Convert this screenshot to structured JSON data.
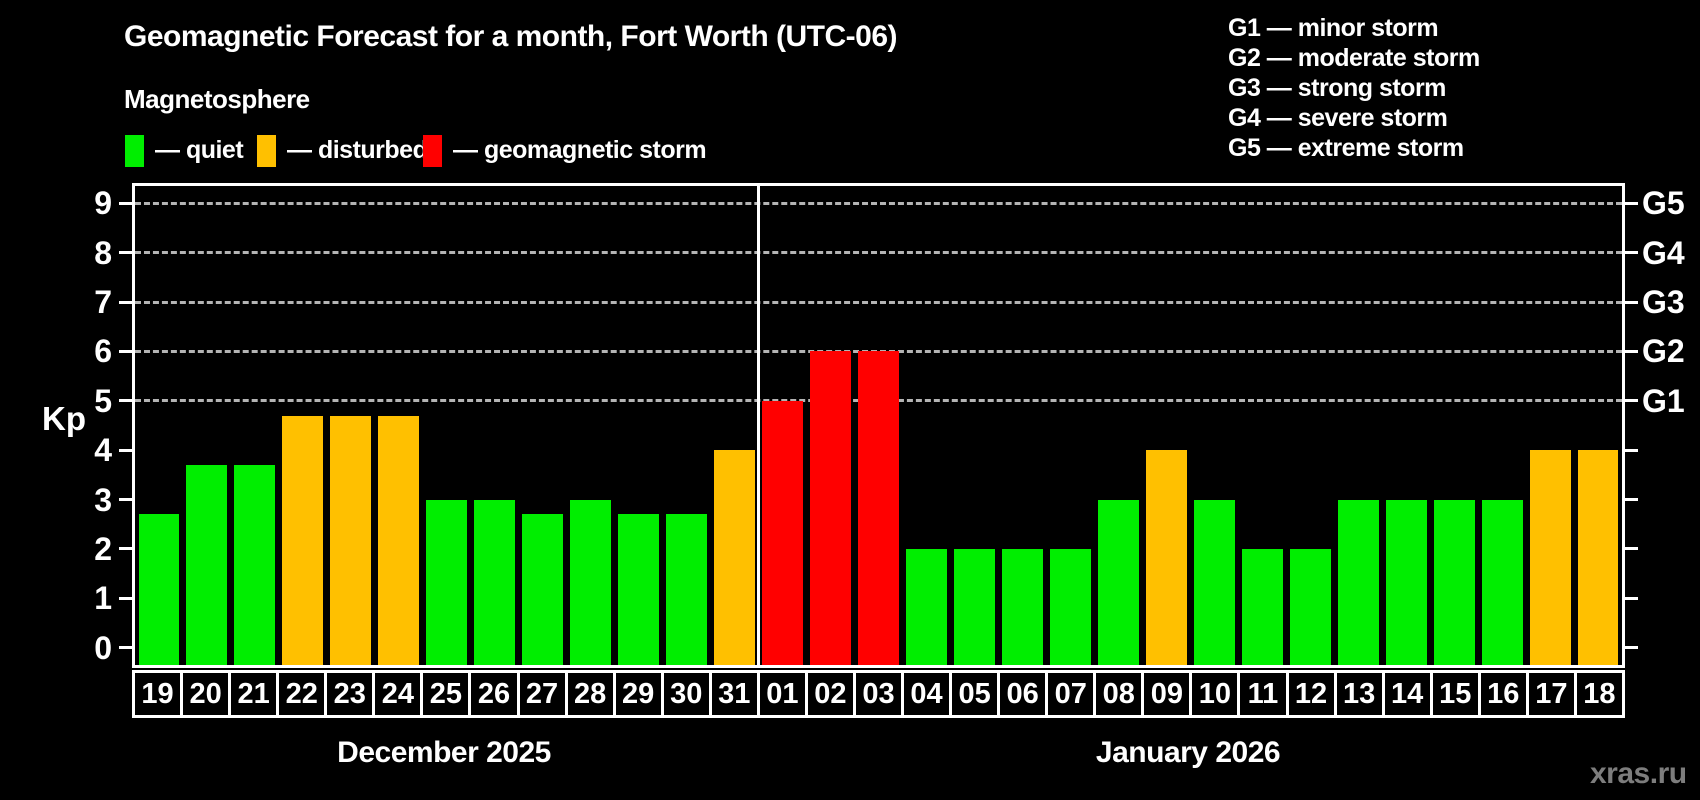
{
  "header": {
    "title": "Geomagnetic Forecast for a month, Fort Worth (UTC-06)",
    "subtitle": "Magnetosphere",
    "legend": [
      {
        "key": "quiet",
        "label": "— quiet",
        "color": "#00EE00"
      },
      {
        "key": "disturbed",
        "label": "— disturbed",
        "color": "#FFC000"
      },
      {
        "key": "storm",
        "label": "— geomagnetic storm",
        "color": "#FF0000"
      }
    ],
    "g_separator": "—",
    "g_legend": [
      {
        "code": "G1",
        "desc": "minor storm"
      },
      {
        "code": "G2",
        "desc": "moderate storm"
      },
      {
        "code": "G3",
        "desc": "strong storm"
      },
      {
        "code": "G4",
        "desc": "severe storm"
      },
      {
        "code": "G5",
        "desc": "extreme storm"
      }
    ]
  },
  "watermark": "xras.ru",
  "chart_data": {
    "type": "bar",
    "title": "Geomagnetic Forecast for a month, Fort Worth (UTC-06)",
    "subtitle": "Magnetosphere",
    "ylabel": "Kp",
    "ylim": [
      0,
      9.4
    ],
    "y_ticks": [
      0,
      1,
      2,
      3,
      4,
      5,
      6,
      7,
      8,
      9
    ],
    "gridlines_at": [
      5,
      6,
      7,
      8,
      9
    ],
    "grid_style": "dashed",
    "right_axis": [
      {
        "label": "G1",
        "kp": 5
      },
      {
        "label": "G2",
        "kp": 6
      },
      {
        "label": "G3",
        "kp": 7
      },
      {
        "label": "G4",
        "kp": 8
      },
      {
        "label": "G5",
        "kp": 9
      }
    ],
    "colors": {
      "quiet": "#00EE00",
      "disturbed": "#FFC000",
      "storm": "#FF0000"
    },
    "groups": [
      {
        "label": "December 2025",
        "days": 13
      },
      {
        "label": "January 2026",
        "days": 18
      }
    ],
    "separator_after_index": 12,
    "bars": [
      {
        "day": "19",
        "kp": 2.7,
        "status": "quiet"
      },
      {
        "day": "20",
        "kp": 3.7,
        "status": "quiet"
      },
      {
        "day": "21",
        "kp": 3.7,
        "status": "quiet"
      },
      {
        "day": "22",
        "kp": 4.7,
        "status": "disturbed"
      },
      {
        "day": "23",
        "kp": 4.7,
        "status": "disturbed"
      },
      {
        "day": "24",
        "kp": 4.7,
        "status": "disturbed"
      },
      {
        "day": "25",
        "kp": 3.0,
        "status": "quiet"
      },
      {
        "day": "26",
        "kp": 3.0,
        "status": "quiet"
      },
      {
        "day": "27",
        "kp": 2.7,
        "status": "quiet"
      },
      {
        "day": "28",
        "kp": 3.0,
        "status": "quiet"
      },
      {
        "day": "29",
        "kp": 2.7,
        "status": "quiet"
      },
      {
        "day": "30",
        "kp": 2.7,
        "status": "quiet"
      },
      {
        "day": "31",
        "kp": 4.0,
        "status": "disturbed"
      },
      {
        "day": "01",
        "kp": 5.0,
        "status": "storm"
      },
      {
        "day": "02",
        "kp": 6.0,
        "status": "storm"
      },
      {
        "day": "03",
        "kp": 6.0,
        "status": "storm"
      },
      {
        "day": "04",
        "kp": 2.0,
        "status": "quiet"
      },
      {
        "day": "05",
        "kp": 2.0,
        "status": "quiet"
      },
      {
        "day": "06",
        "kp": 2.0,
        "status": "quiet"
      },
      {
        "day": "07",
        "kp": 2.0,
        "status": "quiet"
      },
      {
        "day": "08",
        "kp": 3.0,
        "status": "quiet"
      },
      {
        "day": "09",
        "kp": 4.0,
        "status": "disturbed"
      },
      {
        "day": "10",
        "kp": 3.0,
        "status": "quiet"
      },
      {
        "day": "11",
        "kp": 2.0,
        "status": "quiet"
      },
      {
        "day": "12",
        "kp": 2.0,
        "status": "quiet"
      },
      {
        "day": "13",
        "kp": 3.0,
        "status": "quiet"
      },
      {
        "day": "14",
        "kp": 3.0,
        "status": "quiet"
      },
      {
        "day": "15",
        "kp": 3.0,
        "status": "quiet"
      },
      {
        "day": "16",
        "kp": 3.0,
        "status": "quiet"
      },
      {
        "day": "17",
        "kp": 4.0,
        "status": "disturbed"
      },
      {
        "day": "18",
        "kp": 4.0,
        "status": "disturbed"
      }
    ]
  }
}
